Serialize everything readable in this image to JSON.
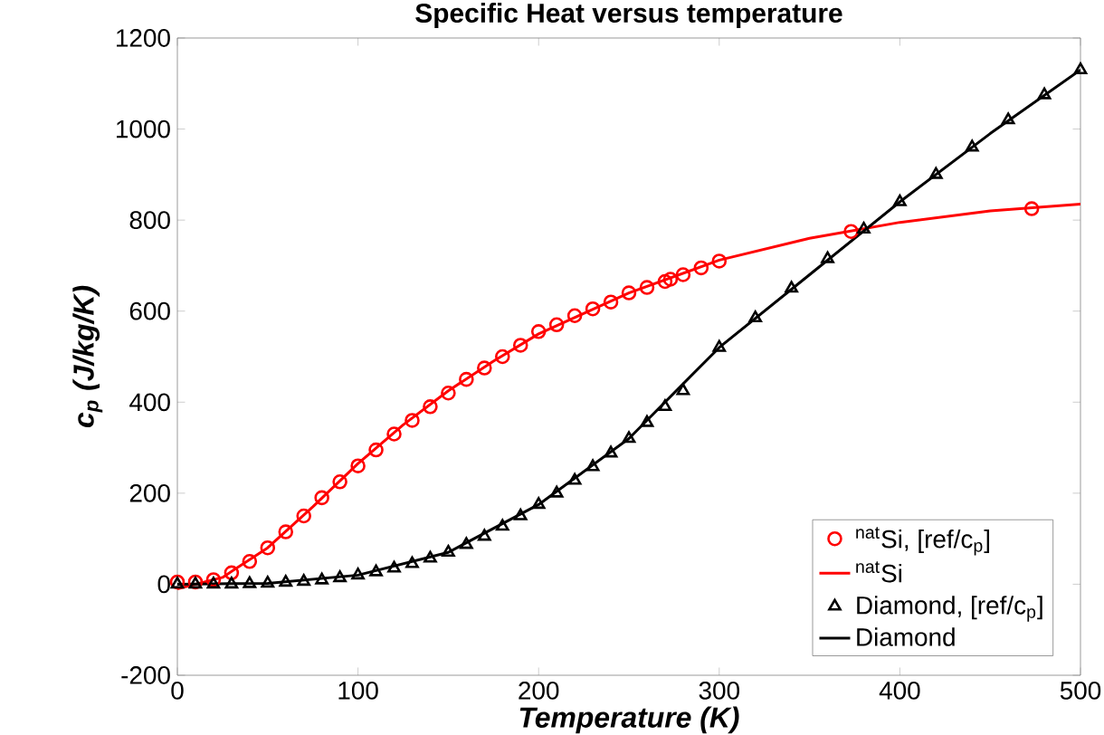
{
  "chart_data": {
    "type": "line",
    "title": "Specific Heat versus temperature",
    "xlabel": "Temperature (K)",
    "ylabel": "c$_{p}$ (J/kg/K)",
    "xlim": [
      0,
      500
    ],
    "ylim": [
      -200,
      1200
    ],
    "xticks": [
      0,
      100,
      200,
      300,
      400,
      500
    ],
    "yticks": [
      -200,
      0,
      200,
      400,
      600,
      800,
      1000,
      1200
    ],
    "grid": false,
    "legend": "bottom right",
    "series": [
      {
        "name": "$^{nat}$Si, [ref/c$_{p}$]",
        "type": "scatter",
        "marker": "circle",
        "color": "#ff0000",
        "x": [
          0,
          10,
          20,
          30,
          40,
          50,
          60,
          70,
          80,
          90,
          100,
          110,
          120,
          130,
          140,
          150,
          160,
          170,
          180,
          190,
          200,
          210,
          220,
          230,
          240,
          250,
          260,
          270,
          273,
          280,
          290,
          300,
          373,
          473
        ],
        "values": [
          5,
          5,
          10,
          25,
          50,
          80,
          115,
          150,
          190,
          225,
          260,
          295,
          330,
          360,
          390,
          420,
          450,
          475,
          500,
          525,
          555,
          570,
          590,
          605,
          620,
          640,
          652,
          665,
          670,
          680,
          695,
          710,
          775,
          825
        ]
      },
      {
        "name": "$^{nat}$Si",
        "color": "#ff0000",
        "x": [
          0,
          25,
          50,
          75,
          100,
          125,
          150,
          175,
          200,
          250,
          300,
          350,
          400,
          450,
          500
        ],
        "values": [
          -10,
          15,
          80,
          170,
          265,
          350,
          425,
          490,
          550,
          640,
          712,
          760,
          795,
          820,
          835
        ]
      },
      {
        "name": "Diamond, [ref/c$_{p}$]",
        "type": "scatter",
        "marker": "triangle",
        "color": "#000000",
        "x": [
          0,
          10,
          20,
          30,
          40,
          50,
          60,
          70,
          80,
          90,
          100,
          110,
          120,
          130,
          140,
          150,
          160,
          170,
          180,
          190,
          200,
          210,
          220,
          230,
          240,
          250,
          260,
          270,
          280,
          300,
          320,
          340,
          360,
          380,
          400,
          420,
          440,
          460,
          480,
          500
        ],
        "values": [
          0,
          0,
          0,
          0,
          1,
          2,
          4,
          6,
          9,
          14,
          20,
          27,
          35,
          45,
          57,
          70,
          87,
          105,
          127,
          150,
          175,
          200,
          228,
          258,
          288,
          320,
          355,
          390,
          425,
          520,
          585,
          650,
          715,
          780,
          840,
          900,
          960,
          1020,
          1075,
          1130
        ]
      },
      {
        "name": "Diamond",
        "color": "#000000",
        "x": [
          0,
          50,
          100,
          150,
          200,
          250,
          300,
          350,
          400,
          450,
          500
        ],
        "values": [
          0,
          2,
          20,
          70,
          175,
          320,
          520,
          680,
          840,
          990,
          1130
        ]
      }
    ]
  }
}
